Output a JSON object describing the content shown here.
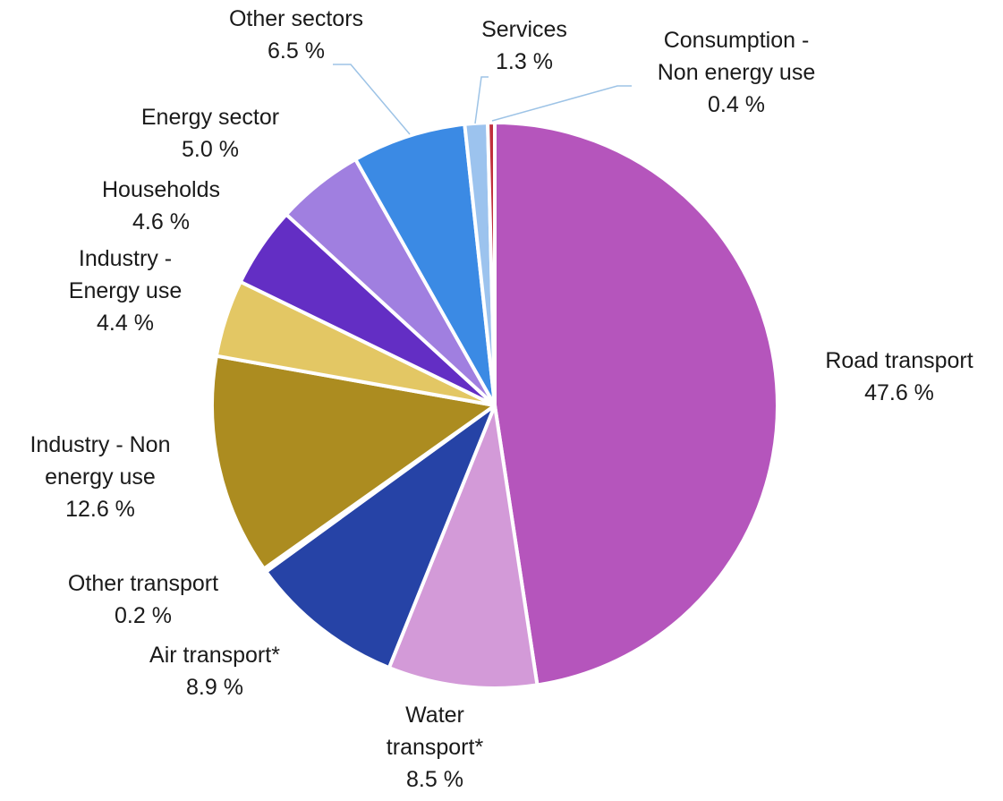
{
  "chart_data": {
    "type": "pie",
    "title": "",
    "start": "12 o'clock",
    "direction": "clockwise",
    "slices": [
      {
        "name": "Road transport",
        "value": 47.6,
        "label_lines": [
          "Road transport",
          "47.6 %"
        ],
        "color": "#b555bc"
      },
      {
        "name": "Water transport*",
        "value": 8.5,
        "label_lines": [
          "Water",
          "transport*",
          "8.5 %"
        ],
        "color": "#d39ad8"
      },
      {
        "name": "Air transport*",
        "value": 8.9,
        "label_lines": [
          "Air transport*",
          "8.9 %"
        ],
        "color": "#2643a6"
      },
      {
        "name": "Other transport",
        "value": 0.2,
        "label_lines": [
          "Other transport",
          "0.2 %"
        ],
        "color": "#2643a6"
      },
      {
        "name": "Industry - Non energy use",
        "value": 12.6,
        "label_lines": [
          "Industry - Non",
          "energy use",
          "12.6 %"
        ],
        "color": "#ac8c20"
      },
      {
        "name": "Industry - Energy use",
        "value": 4.4,
        "label_lines": [
          "Industry -",
          "Energy use",
          "4.4 %"
        ],
        "color": "#e3c764"
      },
      {
        "name": "Households",
        "value": 4.6,
        "label_lines": [
          "Households",
          "4.6 %"
        ],
        "color": "#632ec4"
      },
      {
        "name": "Energy sector",
        "value": 5.0,
        "label_lines": [
          "Energy sector",
          "5.0 %"
        ],
        "color": "#a07fe0"
      },
      {
        "name": "Other sectors",
        "value": 6.5,
        "label_lines": [
          "Other sectors",
          "6.5 %"
        ],
        "color": "#3b8ae4"
      },
      {
        "name": "Services",
        "value": 1.3,
        "label_lines": [
          "Services",
          "1.3 %"
        ],
        "color": "#9cc3ee"
      },
      {
        "name": "Consumption - Non energy use",
        "value": 0.4,
        "label_lines": [
          "Consumption -",
          "Non energy use",
          "0.4 %"
        ],
        "color": "#c0303c"
      }
    ]
  }
}
